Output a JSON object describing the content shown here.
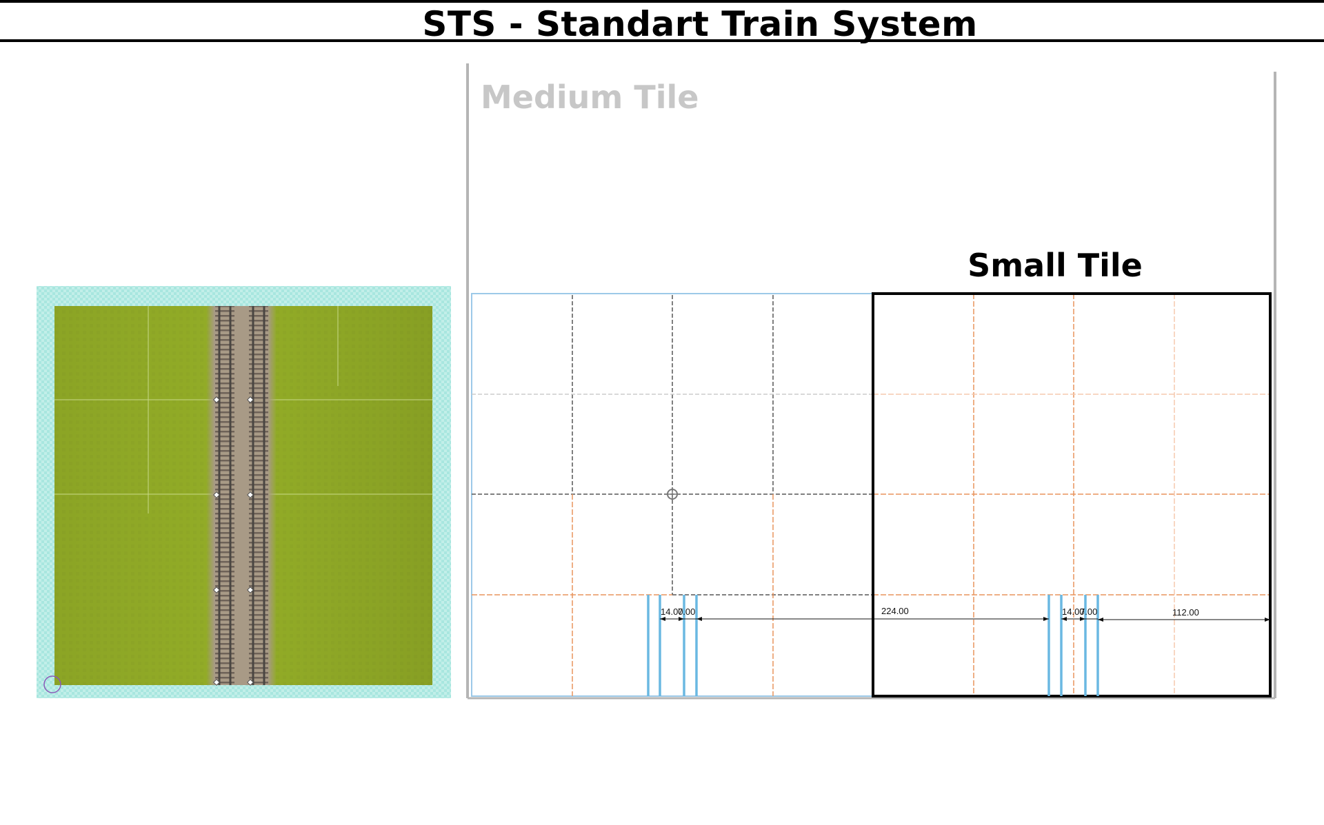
{
  "header": {
    "title": "STS - Standart Train System"
  },
  "diagram": {
    "medium_tile_label": "Medium Tile",
    "small_tile_label": "Small Tile",
    "dimensions_left": [
      "14.00",
      "7.00",
      "224.00"
    ],
    "dimensions_right": [
      "14.00",
      "7.00",
      "112.00"
    ]
  },
  "colors": {
    "grass": "#93ad27",
    "water_grid": "#a8e6df",
    "ballast": "#a89a86",
    "rail": "#4a4642",
    "track_blue": "#6ab8e2",
    "orange_grid": "#e8935c",
    "dark_grid": "#555555",
    "medium_label": "#c7c7c7"
  }
}
